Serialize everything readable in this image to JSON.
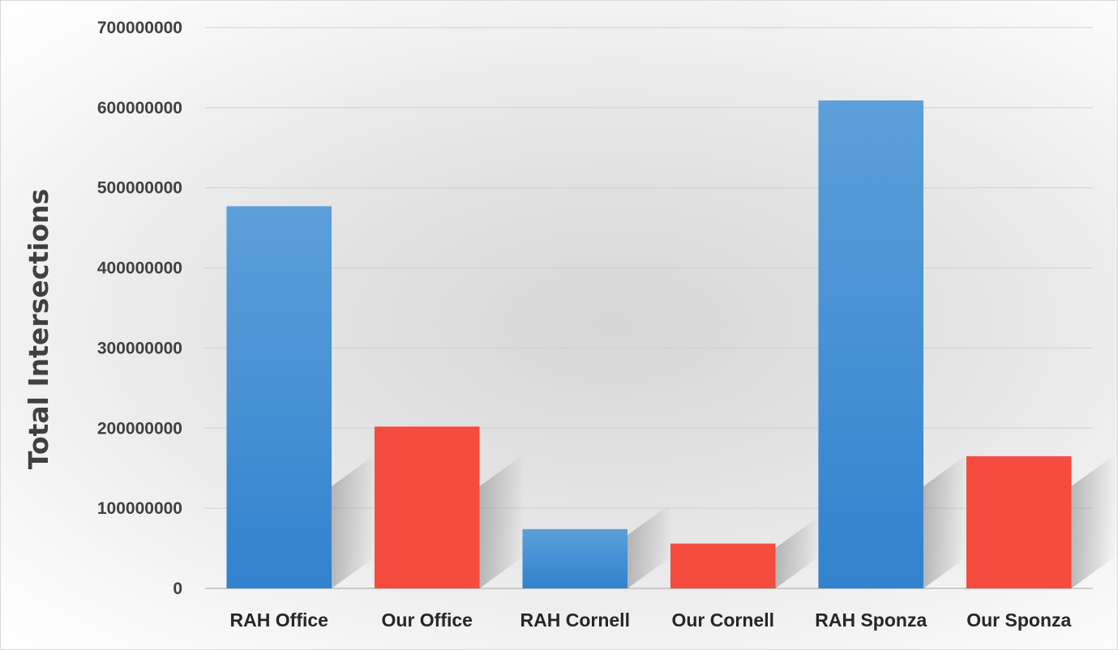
{
  "chart_data": {
    "type": "bar",
    "title": "",
    "xlabel": "",
    "ylabel": "Total Intersections",
    "categories": [
      "RAH Office",
      "Our Office",
      "RAH Cornell",
      "Our Cornell",
      "RAH Sponza",
      "Our Sponza"
    ],
    "values": [
      477000000,
      202000000,
      74000000,
      56000000,
      609000000,
      165000000
    ],
    "bar_colors": [
      "#3a87cf",
      "#f44c3f",
      "#3a87cf",
      "#f44c3f",
      "#3a87cf",
      "#f44c3f"
    ],
    "ylim": [
      0,
      700000000
    ],
    "yticks": [
      0,
      100000000,
      200000000,
      300000000,
      400000000,
      500000000,
      600000000,
      700000000
    ],
    "ytick_labels": [
      "0",
      "100000000",
      "200000000",
      "300000000",
      "400000000",
      "500000000",
      "600000000",
      "700000000"
    ],
    "grid": true,
    "legend": "none"
  }
}
